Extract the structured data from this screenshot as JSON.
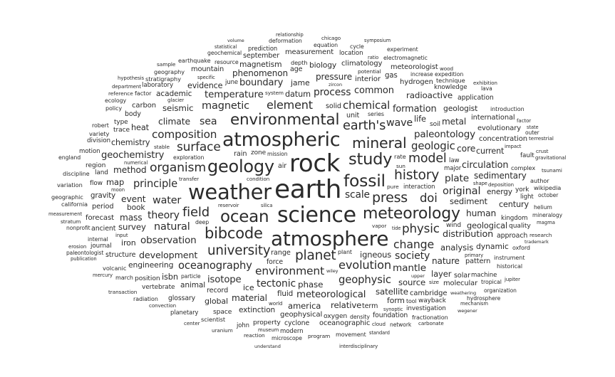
{
  "word_cloud": {
    "text_color": "#2b2b2b",
    "background": "#ffffff",
    "words": [
      "earth",
      "rock",
      "science",
      "weather",
      "atmosphere",
      "atmospheric",
      "geology",
      "fossil",
      "ocean",
      "study",
      "meteorology",
      "environmental",
      "bibcode",
      "mineral",
      "press",
      "history",
      "planet",
      "university",
      "field",
      "earth's",
      "model",
      "organism",
      "surface",
      "physic",
      "doi",
      "evolution",
      "element",
      "change",
      "environment",
      "composition",
      "chemical",
      "geologic",
      "geophysic",
      "oceanography",
      "principle",
      "original",
      "magnetic",
      "natural",
      "water",
      "wave",
      "sea",
      "society",
      "theory",
      "tectonic",
      "process",
      "scale",
      "plate",
      "mantle",
      "observation",
      "paleontology",
      "temperature",
      "meteorological",
      "isotope",
      "geochemistry",
      "boundary",
      "common",
      "formation",
      "circulation",
      "distribution",
      "development",
      "climate",
      "core",
      "event",
      "human",
      "method",
      "material",
      "mass",
      "metal",
      "nature",
      "pressure",
      "phenomenon",
      "sedimentary",
      "phase",
      "radioactive",
      "seismic",
      "satellite",
      "survey",
      "relative",
      "source",
      "analysis",
      "america",
      "sediment",
      "layer",
      "map",
      "igneous",
      "geological",
      "life",
      "isbn",
      "heat",
      "datum",
      "century",
      "chemistry",
      "current",
      "evidence",
      "global",
      "iron",
      "ice",
      "jame",
      "dynamic",
      "form",
      "engineering",
      "geologist",
      "magnetism",
      "biology",
      "book",
      "academic",
      "animal",
      "extinction",
      "energy",
      "fluid",
      "gravity",
      "gas",
      "geophysical",
      "interior",
      "forecast",
      "climatology",
      "hydrogen",
      "carbon",
      "concentration",
      "cambridge",
      "evolutionary",
      "measurement",
      "international",
      "molecular",
      "mountain",
      "oceanographic",
      "meteorologist",
      "pattern",
      "period",
      "range",
      "rain",
      "solid",
      "solar",
      "record",
      "september",
      "unit",
      "term",
      "structure",
      "age",
      "air",
      "ancient",
      "approach",
      "application",
      "body",
      "cyclone",
      "force",
      "foundation",
      "glossary",
      "oxygen",
      "property",
      "position",
      "quality",
      "space",
      "region",
      "trace",
      "wind",
      "soil",
      "york",
      "zone",
      "wayback",
      "vertebrate",
      "type",
      "land",
      "fault",
      "flow",
      "division",
      "investigation",
      "journal",
      "kingdom",
      "knowledge",
      "laboratory",
      "law",
      "light",
      "location",
      "machine",
      "motion",
      "modern",
      "major",
      "june",
      "john",
      "interaction",
      "planetary",
      "prediction",
      "rate",
      "scientist",
      "stratigraphy",
      "technique",
      "volcanic",
      "variety",
      "variation",
      "wikipedia",
      "author",
      "california",
      "complex",
      "depth",
      "discipline",
      "factor",
      "earthquake",
      "fractionation",
      "geographic",
      "geography",
      "historical",
      "instrument",
      "introduction",
      "oxford",
      "march",
      "movement",
      "plant",
      "policy",
      "radiation",
      "resource",
      "robert",
      "series",
      "tool",
      "tropical",
      "ecology",
      "equation",
      "england",
      "exploration",
      "expedition",
      "deformation",
      "cycle",
      "deep",
      "density",
      "electromagnetic",
      "experiment",
      "geochemical",
      "helium",
      "hydrosphere",
      "increase",
      "internal",
      "lava",
      "microscope",
      "mission",
      "mineralogy",
      "network",
      "nonprofit",
      "october",
      "organization",
      "outer",
      "paleontologist",
      "particle",
      "potential",
      "program",
      "pure",
      "reaction",
      "reference",
      "research",
      "sample",
      "size",
      "stable",
      "stratum",
      "sun",
      "system",
      "terrestrial",
      "transaction",
      "transfer",
      "tsunami",
      "uranium",
      "vapor",
      "wood",
      "world",
      "carbonate",
      "center",
      "chicago",
      "cloud",
      "condition",
      "convection",
      "crust",
      "department",
      "deposition",
      "erosion",
      "exhibition",
      "factor",
      "glacier",
      "gravitational",
      "hypothesis",
      "impact",
      "input",
      "interdisciplinary",
      "jupiter",
      "magma",
      "measurement",
      "mechanism",
      "mercury",
      "moon",
      "museum",
      "numerical",
      "primary",
      "publication",
      "reservoir",
      "ratio",
      "relationship",
      "specific",
      "shape",
      "silica",
      "state",
      "standard",
      "statistical",
      "synoptic",
      "symposium",
      "tide",
      "trademark",
      "understand",
      "upper",
      "volume",
      "wegener",
      "weathering",
      "wiley",
      "zircon"
    ]
  }
}
